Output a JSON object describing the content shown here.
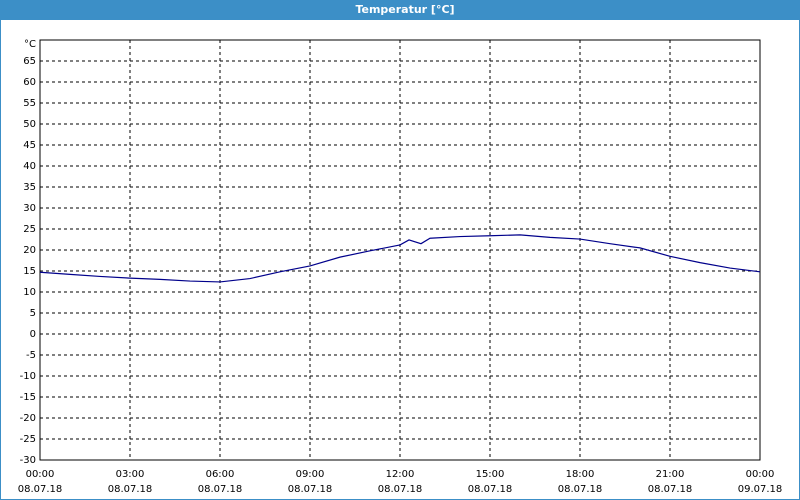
{
  "window_title": "Temperatur [°C]",
  "chart_data": {
    "type": "line",
    "ylabel": "°C",
    "x": [
      0,
      1,
      2,
      3,
      4,
      5,
      6,
      7,
      8,
      9,
      10,
      11,
      12,
      12.3,
      12.7,
      13,
      14,
      15,
      16,
      17,
      18,
      19,
      20,
      21,
      22,
      23,
      24
    ],
    "series": [
      {
        "name": "Temperatur",
        "color": "#00008b",
        "values": [
          14.7,
          14.2,
          13.7,
          13.3,
          13.0,
          12.6,
          12.4,
          13.2,
          14.8,
          16.2,
          18.3,
          19.8,
          21.2,
          22.4,
          21.5,
          22.8,
          23.2,
          23.4,
          23.6,
          23.0,
          22.6,
          21.5,
          20.5,
          18.5,
          17.0,
          15.7,
          14.8
        ]
      }
    ],
    "xlim": [
      0,
      24
    ],
    "xticks": [
      {
        "value": 0,
        "label": "00:00",
        "date": "08.07.18"
      },
      {
        "value": 3,
        "label": "03:00",
        "date": "08.07.18"
      },
      {
        "value": 6,
        "label": "06:00",
        "date": "08.07.18"
      },
      {
        "value": 9,
        "label": "09:00",
        "date": "08.07.18"
      },
      {
        "value": 12,
        "label": "12:00",
        "date": "08.07.18"
      },
      {
        "value": 15,
        "label": "15:00",
        "date": "08.07.18"
      },
      {
        "value": 18,
        "label": "18:00",
        "date": "08.07.18"
      },
      {
        "value": 21,
        "label": "21:00",
        "date": "08.07.18"
      },
      {
        "value": 24,
        "label": "00:00",
        "date": "09.07.18"
      }
    ],
    "ylim": [
      -30,
      70
    ],
    "yticks": [
      -30,
      -25,
      -20,
      -15,
      -10,
      -5,
      0,
      5,
      10,
      15,
      20,
      25,
      30,
      35,
      40,
      45,
      50,
      55,
      60,
      65
    ],
    "grid": true
  }
}
